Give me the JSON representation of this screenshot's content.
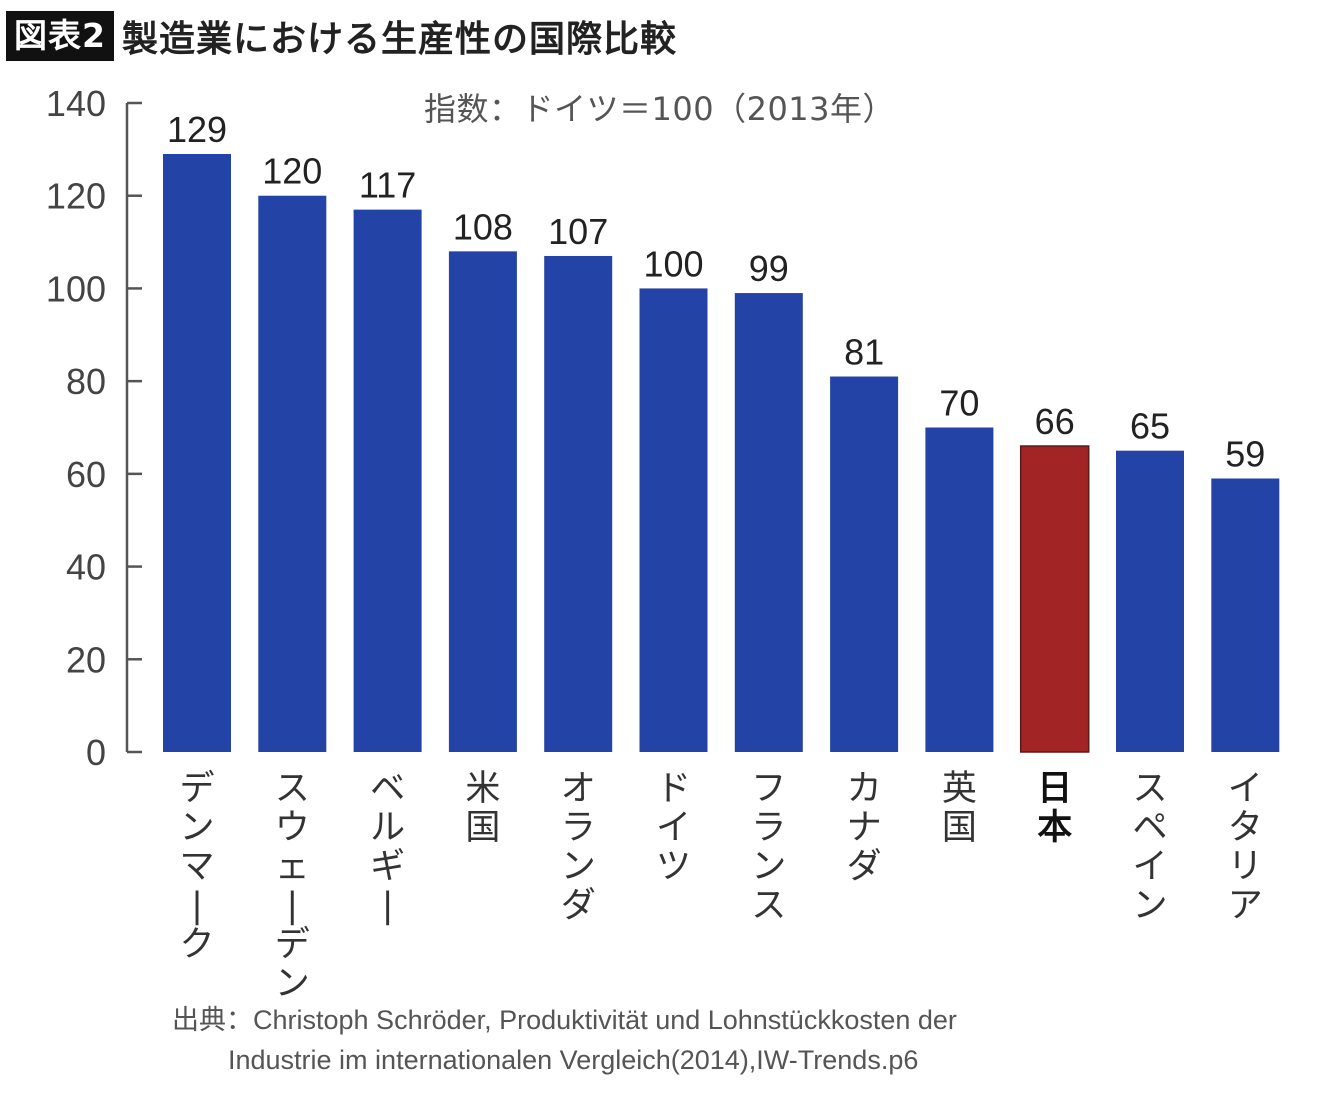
{
  "header": {
    "badge": "図表2",
    "title": "製造業における生産性の国際比較"
  },
  "chart_data": {
    "type": "bar",
    "title": "製造業における生産性の国際比較",
    "subtitle": "指数：ドイツ＝100（2013年）",
    "xlabel": "",
    "ylabel": "",
    "ylim": [
      0,
      140
    ],
    "yticks": [
      0,
      20,
      40,
      60,
      80,
      100,
      120,
      140
    ],
    "grid": false,
    "legend": "none",
    "categories": [
      "デンマーク",
      "スウェーデン",
      "ベルギー",
      "米国",
      "オランダ",
      "ドイツ",
      "フランス",
      "カナダ",
      "英国",
      "日本",
      "スペイン",
      "イタリア"
    ],
    "values": [
      129,
      120,
      117,
      108,
      107,
      100,
      99,
      81,
      70,
      66,
      65,
      59
    ],
    "highlight": "日本",
    "colors": {
      "bar": "#2443a6",
      "highlight": "#a32424",
      "axis": "#555555",
      "label": "#222222"
    }
  },
  "footer": {
    "source_line1": "出典：Christoph Schröder, Produktivität und Lohnstückkosten der",
    "source_line2": "Industrie im internationalen Vergleich(2014),IW-Trends.p6"
  }
}
